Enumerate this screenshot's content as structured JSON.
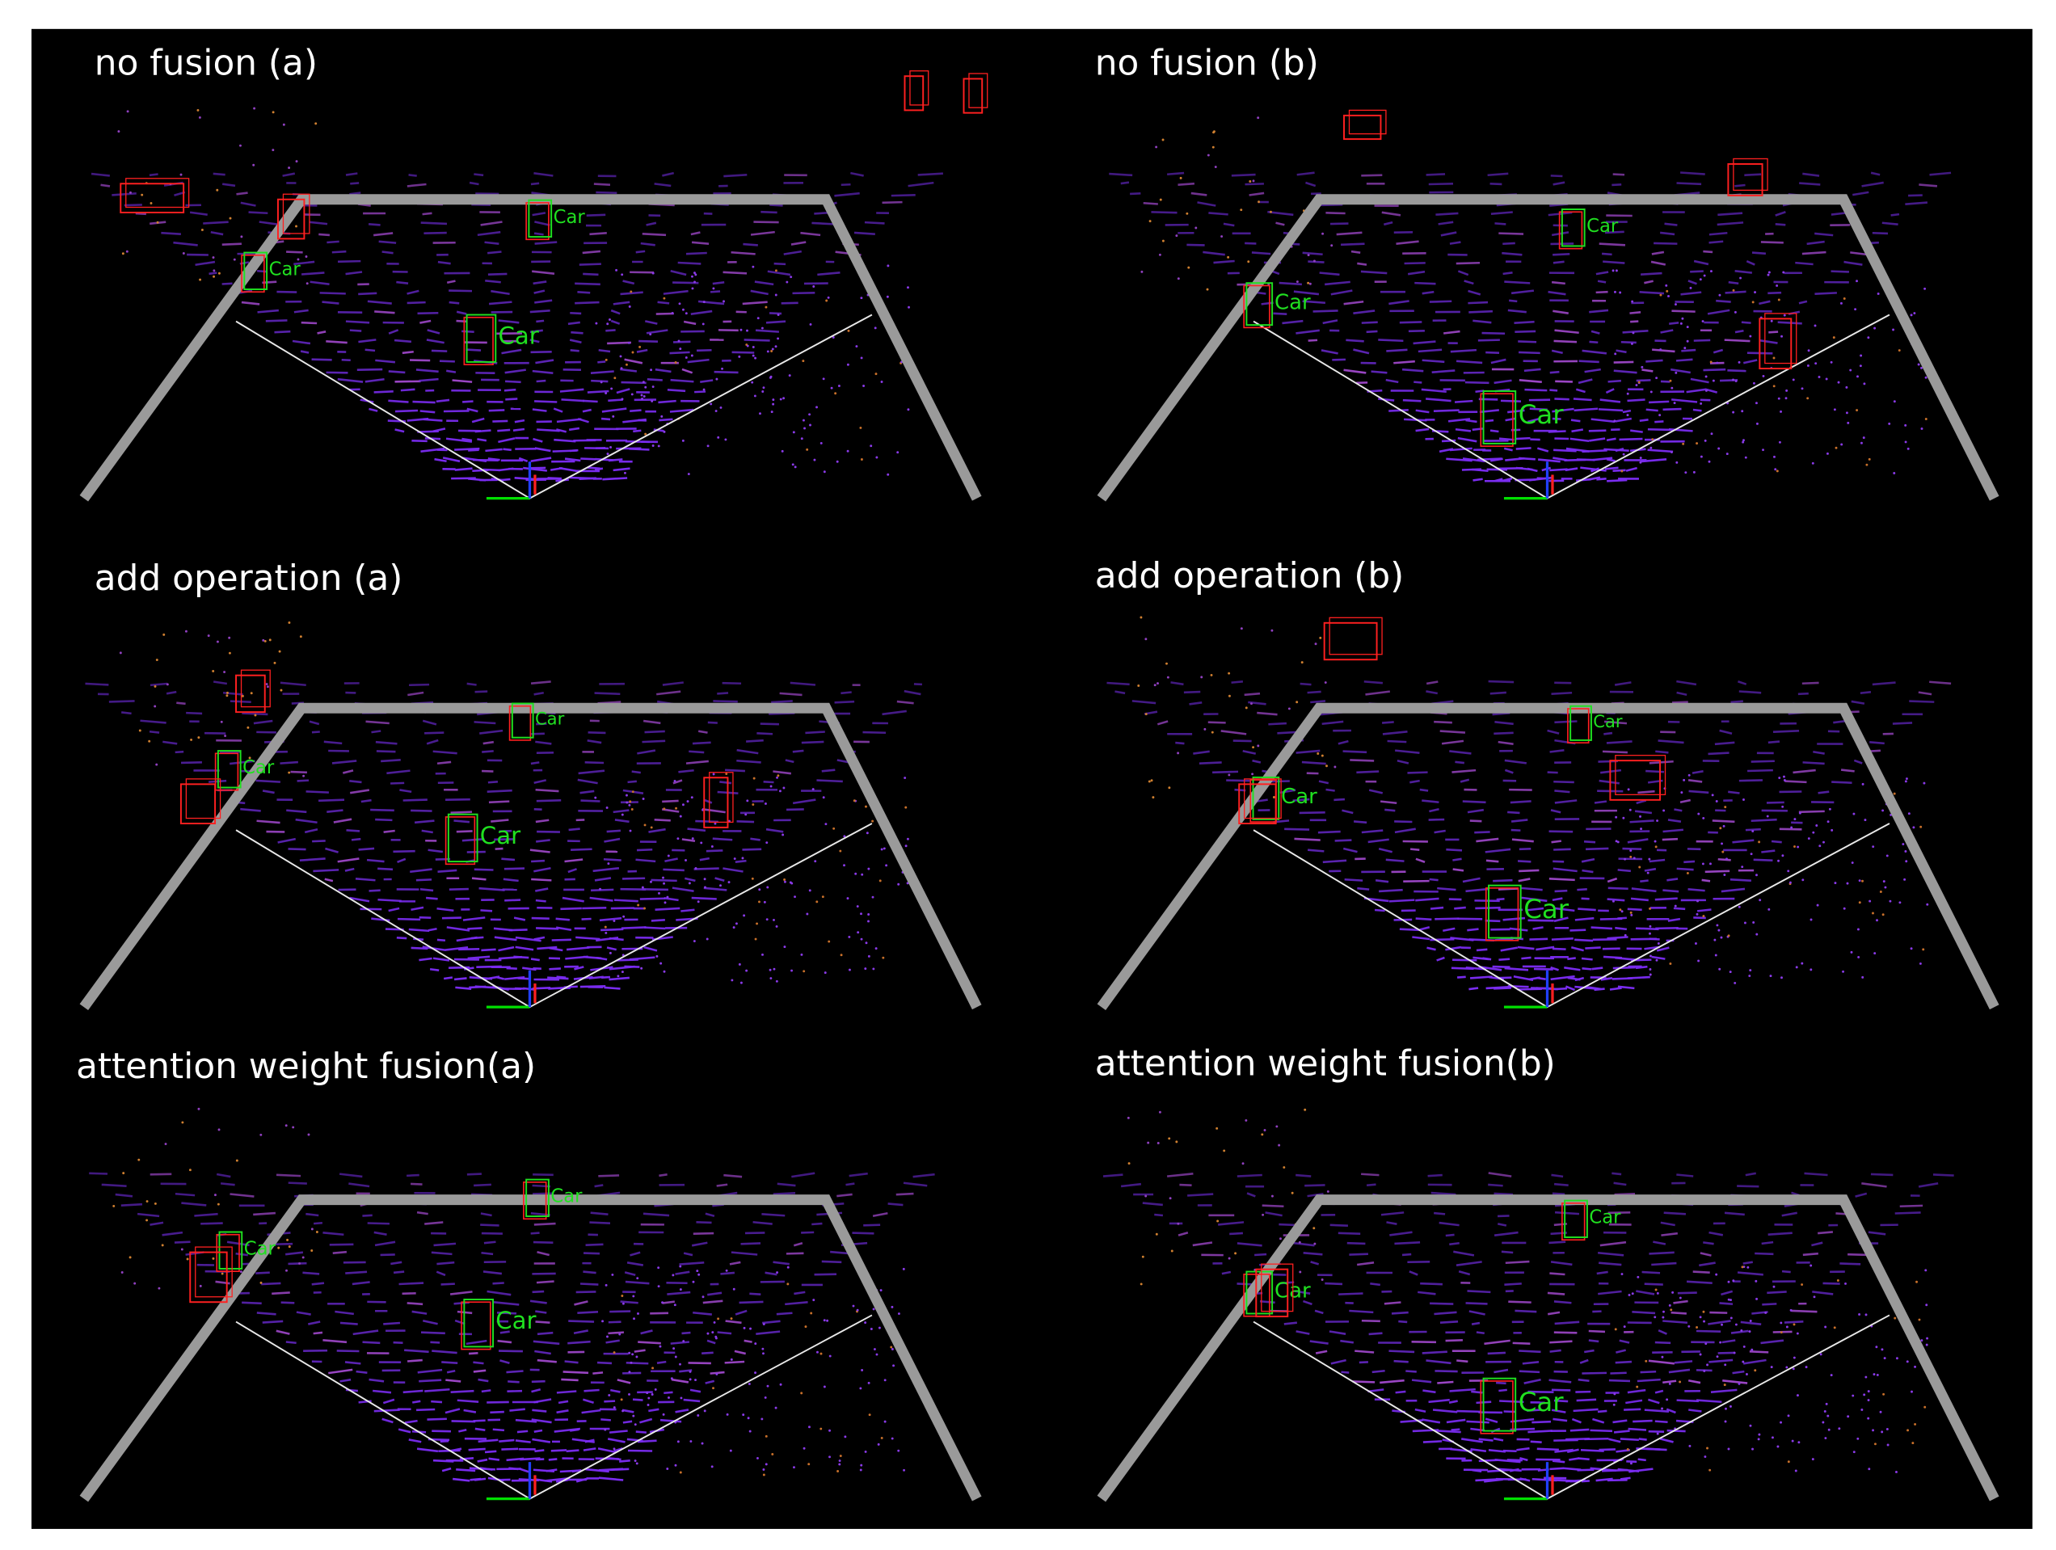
{
  "panels": [
    {
      "title": "no fusion (a)",
      "labels": [
        "Car",
        "Car",
        "Car"
      ]
    },
    {
      "title": "no fusion (b)",
      "labels": [
        "Car",
        "Car",
        "Car"
      ]
    },
    {
      "title": "add operation (a)",
      "labels": [
        "Car",
        "Car",
        "Car"
      ]
    },
    {
      "title": "add operation (b)",
      "labels": [
        "Car",
        "Car",
        "Car"
      ]
    },
    {
      "title": "attention weight fusion(a)",
      "labels": [
        "Car",
        "Car",
        "Car"
      ]
    },
    {
      "title": "attention weight fusion(b)",
      "labels": [
        "Car",
        "Car",
        "Car"
      ]
    }
  ]
}
